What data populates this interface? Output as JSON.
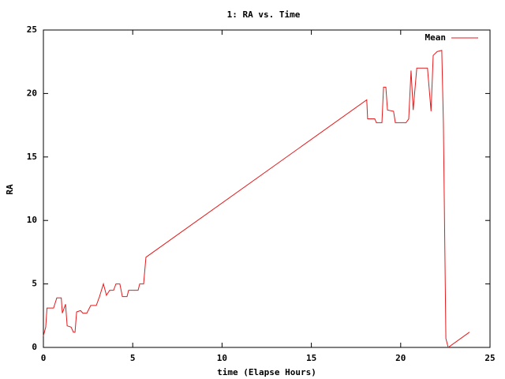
{
  "chart_data": {
    "type": "line",
    "title": "1: RA vs. Time",
    "x_label": "time (Elapse Hours)",
    "y_label": "RA",
    "xlim": [
      0,
      25
    ],
    "xticks": [
      0,
      5,
      10,
      15,
      20,
      25
    ],
    "ylim": [
      0,
      25
    ],
    "yticks": [
      0,
      5,
      10,
      15,
      20,
      25
    ],
    "grid": false,
    "legend": "top right",
    "series": [
      {
        "name": "Mean",
        "color": "#e41a1c",
        "x": [
          0,
          0.13,
          0.2,
          0.57,
          0.75,
          1.0,
          1.06,
          1.24,
          1.33,
          1.55,
          1.68,
          1.77,
          1.86,
          2.08,
          2.21,
          2.43,
          2.65,
          2.96,
          3.14,
          3.36,
          3.53,
          3.71,
          3.93,
          4.06,
          4.28,
          4.42,
          4.68,
          4.77,
          5.3,
          5.39,
          5.61,
          5.74,
          18.1,
          18.15,
          18.55,
          18.64,
          18.95,
          19.04,
          19.17,
          19.26,
          19.6,
          19.7,
          20.3,
          20.45,
          20.58,
          20.7,
          20.9,
          21.5,
          21.7,
          21.82,
          22.04,
          22.3,
          22.39,
          22.53,
          22.66,
          23.85
        ],
        "values": [
          0.9,
          1.6,
          3.1,
          3.1,
          3.9,
          3.9,
          2.7,
          3.4,
          1.7,
          1.6,
          1.2,
          1.2,
          2.8,
          2.9,
          2.7,
          2.7,
          3.3,
          3.3,
          4.0,
          5.0,
          4.1,
          4.5,
          4.5,
          5.0,
          5.0,
          4.0,
          4.0,
          4.5,
          4.5,
          5.0,
          5.0,
          7.1,
          19.5,
          18.0,
          18.0,
          17.7,
          17.7,
          20.5,
          20.5,
          18.7,
          18.6,
          17.7,
          17.7,
          18.0,
          21.8,
          18.7,
          22.0,
          22.0,
          18.6,
          23.0,
          23.3,
          23.4,
          17.7,
          0.7,
          0.0,
          1.2
        ]
      }
    ]
  }
}
